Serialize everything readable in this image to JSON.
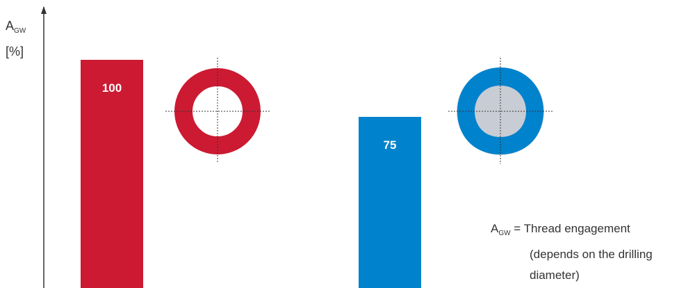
{
  "chart_data": {
    "type": "bar",
    "categories": [
      "",
      ""
    ],
    "values": [
      100,
      75
    ],
    "data_labels": [
      "100",
      "75"
    ],
    "colors": [
      "#cc1a32",
      "#0082cc"
    ],
    "ylabel": {
      "symbol": "A",
      "subscript": "GW",
      "unit": "[%]"
    },
    "ylim": [
      0,
      115
    ],
    "grid": false,
    "legend": "none",
    "annotation": {
      "symbol": "A",
      "subscript": "GW",
      "equals": " = ",
      "line1": "Thread engagement",
      "line2": "(depends on the drilling",
      "line3": "diameter)"
    },
    "cross_section_colors": {
      "round": "#cc1a32",
      "trilobular": "#0082cc",
      "envelope": "#c8ccd4",
      "center_lines": "#333333"
    }
  }
}
